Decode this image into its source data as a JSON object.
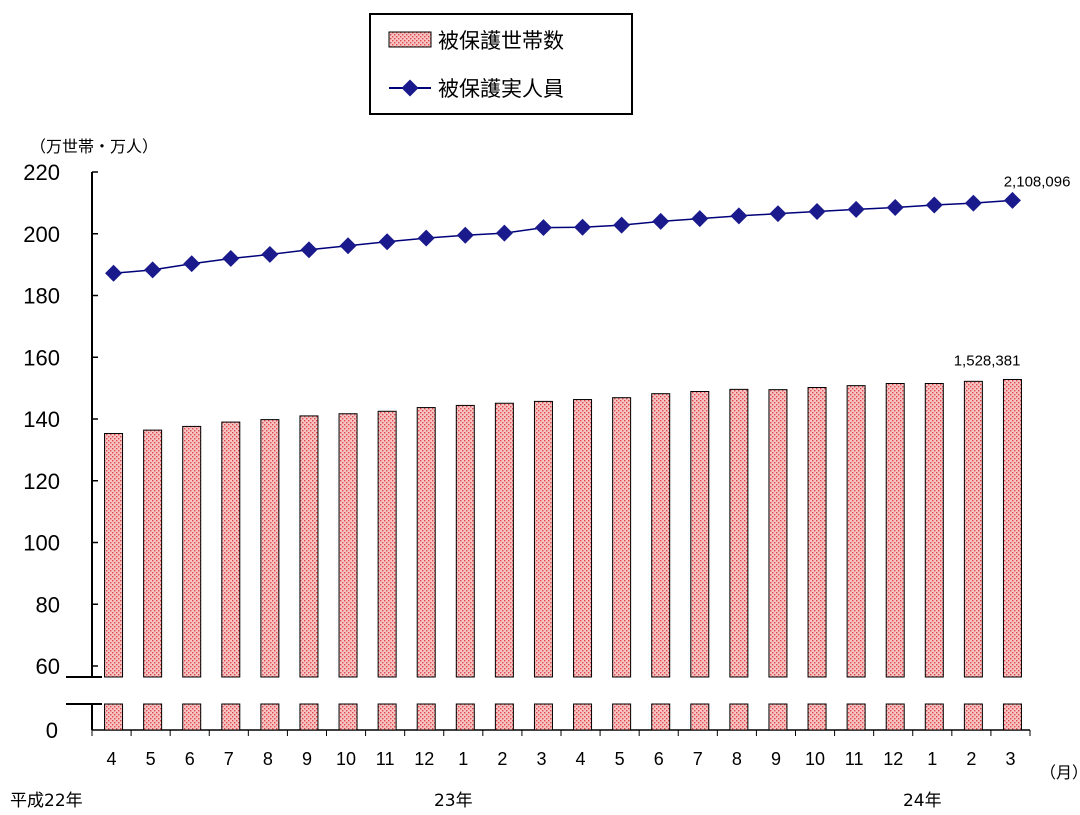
{
  "chart_data": {
    "type": "bar+line",
    "y_unit_label": "（万世帯・万人）",
    "x_unit_label": "（月）",
    "categories": [
      "4",
      "5",
      "6",
      "7",
      "8",
      "9",
      "10",
      "11",
      "12",
      "1",
      "2",
      "3",
      "4",
      "5",
      "6",
      "7",
      "8",
      "9",
      "10",
      "11",
      "12",
      "1",
      "2",
      "3"
    ],
    "year_labels": [
      {
        "text": "平成22年",
        "category_index": 0
      },
      {
        "text": "23年",
        "category_index": 9
      },
      {
        "text": "24年",
        "category_index": 21
      }
    ],
    "y_ticks": [
      "220",
      "200",
      "180",
      "160",
      "140",
      "120",
      "100",
      "80",
      "60",
      "0"
    ],
    "ylim": [
      60,
      220
    ],
    "y_axis_break": true,
    "series": [
      {
        "name": "被保護世帯数",
        "type": "bar",
        "color": "#f4b8b8",
        "pattern_color": "#e05050",
        "values": [
          135.3,
          136.4,
          137.6,
          139.0,
          139.8,
          141.0,
          141.7,
          142.5,
          143.7,
          144.4,
          145.1,
          145.7,
          146.3,
          146.9,
          148.2,
          148.9,
          149.6,
          149.5,
          150.2,
          150.8,
          151.5,
          151.5,
          152.2,
          152.8
        ],
        "last_value_label": "1,528,381"
      },
      {
        "name": "被保護実人員",
        "type": "line",
        "color": "#00007a",
        "marker_color": "#1a1a8c",
        "values": [
          187.2,
          188.3,
          190.3,
          192.0,
          193.3,
          194.8,
          196.1,
          197.4,
          198.6,
          199.5,
          200.2,
          202.0,
          202.1,
          202.8,
          204.0,
          204.9,
          205.8,
          206.5,
          207.2,
          207.9,
          208.5,
          209.3,
          209.9,
          210.8
        ],
        "last_value_label": "2,108,096"
      }
    ],
    "legend": "top-center",
    "grid": false
  }
}
